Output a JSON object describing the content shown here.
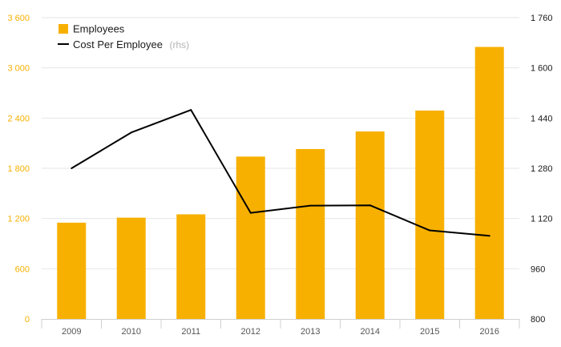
{
  "chart_data": {
    "type": "bar+line",
    "categories": [
      "2009",
      "2010",
      "2011",
      "2012",
      "2013",
      "2014",
      "2015",
      "2016"
    ],
    "series": [
      {
        "name": "Employees",
        "type": "bar",
        "axis": "left",
        "color": "#f7b000",
        "values": [
          1150,
          1210,
          1250,
          1940,
          2030,
          2240,
          2490,
          3250
        ]
      },
      {
        "name": "Cost Per Employee",
        "name_suffix": "(rhs)",
        "type": "line",
        "axis": "right",
        "color": "#000000",
        "values": [
          1280,
          1394,
          1466,
          1138,
          1161,
          1162,
          1082,
          1065
        ]
      }
    ],
    "y_left": {
      "ylim": [
        0,
        3600
      ],
      "ticks": [
        0,
        600,
        1200,
        1800,
        2400,
        3000,
        3600
      ],
      "tick_labels": [
        "0",
        "600",
        "1 200",
        "1 800",
        "2 400",
        "3 000",
        "3 600"
      ]
    },
    "y_right": {
      "ylim": [
        800,
        1760
      ],
      "ticks": [
        800,
        960,
        1120,
        1280,
        1440,
        1600,
        1760
      ],
      "tick_labels": [
        "800",
        "960",
        "1 120",
        "1 280",
        "1 440",
        "1 600",
        "1 760"
      ]
    },
    "grid": true,
    "legend": "top-left"
  }
}
